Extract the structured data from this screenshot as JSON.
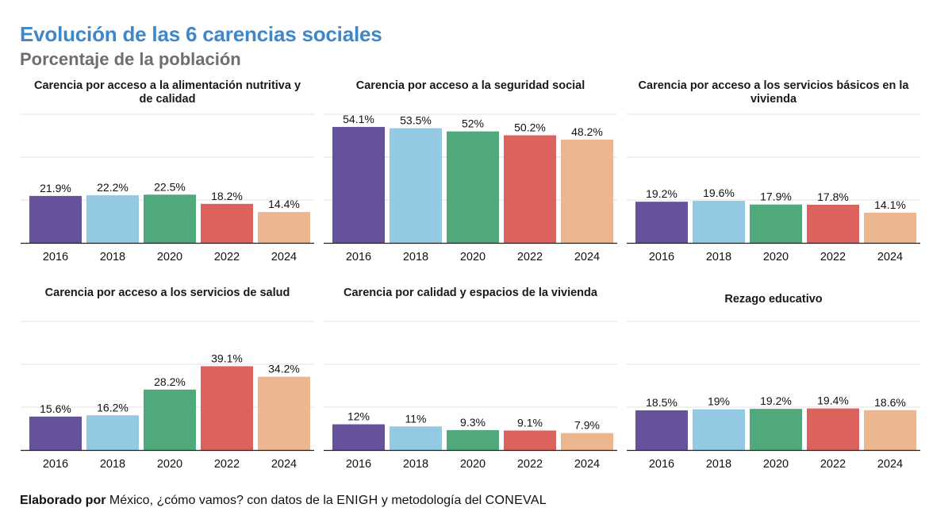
{
  "title": "Evolución de las 6 carencias sociales",
  "subtitle": "Porcentaje de la población",
  "footer": {
    "prefix": "Elaborado por",
    "org": " México, ¿cómo vamos? con datos de la ",
    "source1": "ENIGH",
    "middle": " y metodología del ",
    "source2": "CONEVAL"
  },
  "colors": [
    "#65529b",
    "#93c9e2",
    "#4fa97b",
    "#dc625e",
    "#ecb690"
  ],
  "chart_data": [
    {
      "type": "bar",
      "title": "Carencia por acceso a la alimentación nutritiva y de calidad",
      "categories": [
        "2016",
        "2018",
        "2020",
        "2022",
        "2024"
      ],
      "values": [
        21.9,
        22.2,
        22.5,
        18.2,
        14.4
      ],
      "labels": [
        "21.9%",
        "22.2%",
        "22.5%",
        "18.2%",
        "14.4%"
      ],
      "ylim": [
        0,
        60
      ],
      "grid": true
    },
    {
      "type": "bar",
      "title": "Carencia por acceso a la seguridad social",
      "categories": [
        "2016",
        "2018",
        "2020",
        "2022",
        "2024"
      ],
      "values": [
        54.1,
        53.5,
        52,
        50.2,
        48.2
      ],
      "labels": [
        "54.1%",
        "53.5%",
        "52%",
        "50.2%",
        "48.2%"
      ],
      "ylim": [
        0,
        60
      ],
      "grid": true
    },
    {
      "type": "bar",
      "title": "Carencia por acceso a los servicios básicos en la vivienda",
      "categories": [
        "2016",
        "2018",
        "2020",
        "2022",
        "2024"
      ],
      "values": [
        19.2,
        19.6,
        17.9,
        17.8,
        14.1
      ],
      "labels": [
        "19.2%",
        "19.6%",
        "17.9%",
        "17.8%",
        "14.1%"
      ],
      "ylim": [
        0,
        60
      ],
      "grid": true
    },
    {
      "type": "bar",
      "title": "Carencia por acceso a los servicios de salud",
      "categories": [
        "2016",
        "2018",
        "2020",
        "2022",
        "2024"
      ],
      "values": [
        15.6,
        16.2,
        28.2,
        39.1,
        34.2
      ],
      "labels": [
        "15.6%",
        "16.2%",
        "28.2%",
        "39.1%",
        "34.2%"
      ],
      "ylim": [
        0,
        60
      ],
      "grid": true
    },
    {
      "type": "bar",
      "title": "Carencia por calidad y espacios de la vivienda",
      "categories": [
        "2016",
        "2018",
        "2020",
        "2022",
        "2024"
      ],
      "values": [
        12,
        11,
        9.3,
        9.1,
        7.9
      ],
      "labels": [
        "12%",
        "11%",
        "9.3%",
        "9.1%",
        "7.9%"
      ],
      "ylim": [
        0,
        60
      ],
      "grid": true
    },
    {
      "type": "bar",
      "title": "Rezago educativo",
      "categories": [
        "2016",
        "2018",
        "2020",
        "2022",
        "2024"
      ],
      "values": [
        18.5,
        19,
        19.2,
        19.4,
        18.6
      ],
      "labels": [
        "18.5%",
        "19%",
        "19.2%",
        "19.4%",
        "18.6%"
      ],
      "ylim": [
        0,
        60
      ],
      "grid": true
    }
  ]
}
